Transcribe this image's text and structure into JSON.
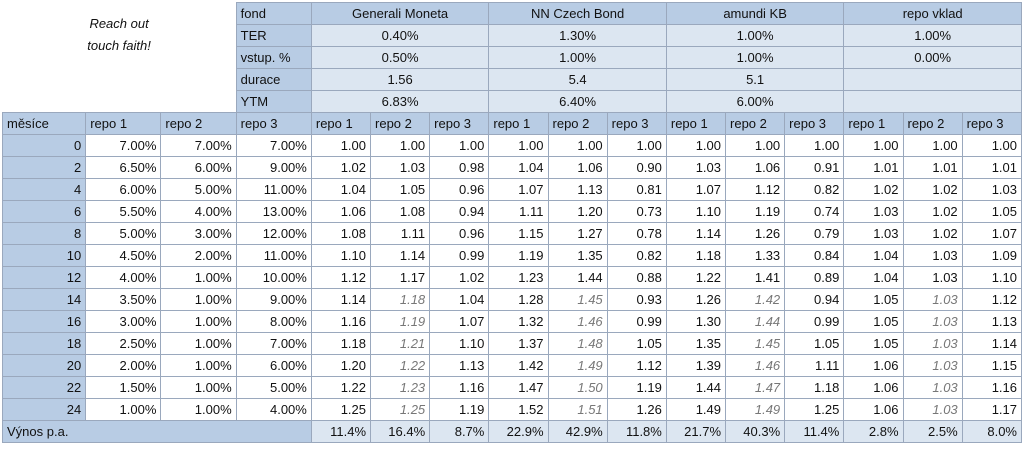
{
  "note": [
    "Reach out",
    "touch faith!"
  ],
  "fund_label": "fond",
  "attribute_labels": [
    "TER",
    "vstup. %",
    "durace",
    "YTM"
  ],
  "funds": [
    {
      "name": "Generali Moneta",
      "attributes": [
        "0.40%",
        "0.50%",
        "1.56",
        "6.83%"
      ]
    },
    {
      "name": "NN Czech Bond",
      "attributes": [
        "1.30%",
        "1.00%",
        "5.4",
        "6.40%"
      ]
    },
    {
      "name": "amundi KB",
      "attributes": [
        "1.00%",
        "1.00%",
        "5.1",
        "6.00%"
      ]
    },
    {
      "name": "repo vklad",
      "attributes": [
        "1.00%",
        "0.00%"
      ]
    }
  ],
  "table": {
    "header": [
      "měsíce",
      "repo 1",
      "repo 2",
      "repo 3",
      "repo 1",
      "repo 2",
      "repo 3",
      "repo 1",
      "repo 2",
      "repo 3",
      "repo 1",
      "repo 2",
      "repo 3",
      "repo 1",
      "repo 2",
      "repo 3"
    ],
    "rows": [
      [
        0,
        "7.00%",
        "7.00%",
        "7.00%",
        "1.00",
        "1.00",
        "1.00",
        "1.00",
        "1.00",
        "1.00",
        "1.00",
        "1.00",
        "1.00",
        "1.00",
        "1.00",
        "1.00"
      ],
      [
        2,
        "6.50%",
        "6.00%",
        "9.00%",
        "1.02",
        "1.03",
        "0.98",
        "1.04",
        "1.06",
        "0.90",
        "1.03",
        "1.06",
        "0.91",
        "1.01",
        "1.01",
        "1.01"
      ],
      [
        4,
        "6.00%",
        "5.00%",
        "11.00%",
        "1.04",
        "1.05",
        "0.96",
        "1.07",
        "1.13",
        "0.81",
        "1.07",
        "1.12",
        "0.82",
        "1.02",
        "1.02",
        "1.03"
      ],
      [
        6,
        "5.50%",
        "4.00%",
        "13.00%",
        "1.06",
        "1.08",
        "0.94",
        "1.11",
        "1.20",
        "0.73",
        "1.10",
        "1.19",
        "0.74",
        "1.03",
        "1.02",
        "1.05"
      ],
      [
        8,
        "5.00%",
        "3.00%",
        "12.00%",
        "1.08",
        "1.11",
        "0.96",
        "1.15",
        "1.27",
        "0.78",
        "1.14",
        "1.26",
        "0.79",
        "1.03",
        "1.02",
        "1.07"
      ],
      [
        10,
        "4.50%",
        "2.00%",
        "11.00%",
        "1.10",
        "1.14",
        "0.99",
        "1.19",
        "1.35",
        "0.82",
        "1.18",
        "1.33",
        "0.84",
        "1.04",
        "1.03",
        "1.09"
      ],
      [
        12,
        "4.00%",
        "1.00%",
        "10.00%",
        "1.12",
        "1.17",
        "1.02",
        "1.23",
        "1.44",
        "0.88",
        "1.22",
        "1.41",
        "0.89",
        "1.04",
        "1.03",
        "1.10"
      ],
      [
        14,
        "3.50%",
        "1.00%",
        "9.00%",
        "1.14",
        "1.18",
        "1.04",
        "1.28",
        "1.45",
        "0.93",
        "1.26",
        "1.42",
        "0.94",
        "1.05",
        "1.03",
        "1.12"
      ],
      [
        16,
        "3.00%",
        "1.00%",
        "8.00%",
        "1.16",
        "1.19",
        "1.07",
        "1.32",
        "1.46",
        "0.99",
        "1.30",
        "1.44",
        "0.99",
        "1.05",
        "1.03",
        "1.13"
      ],
      [
        18,
        "2.50%",
        "1.00%",
        "7.00%",
        "1.18",
        "1.21",
        "1.10",
        "1.37",
        "1.48",
        "1.05",
        "1.35",
        "1.45",
        "1.05",
        "1.05",
        "1.03",
        "1.14"
      ],
      [
        20,
        "2.00%",
        "1.00%",
        "6.00%",
        "1.20",
        "1.22",
        "1.13",
        "1.42",
        "1.49",
        "1.12",
        "1.39",
        "1.46",
        "1.11",
        "1.06",
        "1.03",
        "1.15"
      ],
      [
        22,
        "1.50%",
        "1.00%",
        "5.00%",
        "1.22",
        "1.23",
        "1.16",
        "1.47",
        "1.50",
        "1.19",
        "1.44",
        "1.47",
        "1.18",
        "1.06",
        "1.03",
        "1.16"
      ],
      [
        24,
        "1.00%",
        "1.00%",
        "4.00%",
        "1.25",
        "1.25",
        "1.19",
        "1.52",
        "1.51",
        "1.26",
        "1.49",
        "1.49",
        "1.25",
        "1.06",
        "1.03",
        "1.17"
      ]
    ],
    "footer_label": "Výnos p.a.",
    "footer": [
      "11.4%",
      "16.4%",
      "8.7%",
      "22.9%",
      "42.9%",
      "11.8%",
      "21.7%",
      "40.3%",
      "11.4%",
      "2.8%",
      "2.5%",
      "8.0%"
    ]
  }
}
